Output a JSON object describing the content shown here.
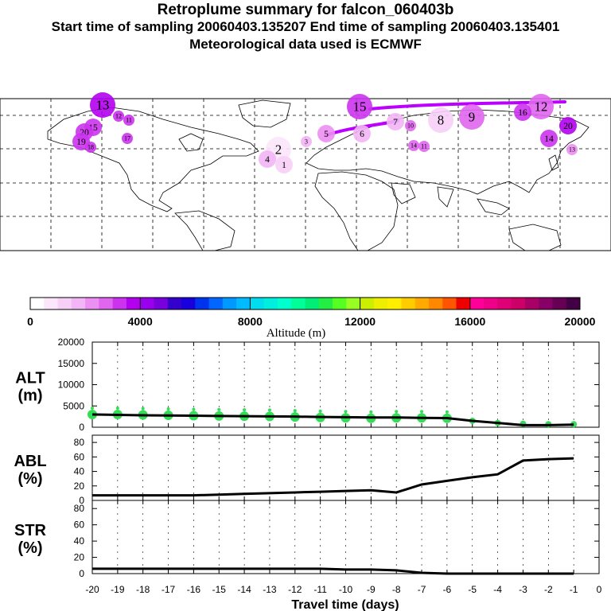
{
  "header": {
    "title": "Retroplume summary for falcon_060403b",
    "sampling": "Start time of sampling 20060403.135207     End time of sampling 20060403.135401",
    "met": "Meteorological data used is ECMWF"
  },
  "colors": {
    "altitude_scale": [
      "#ffffff",
      "#fbe6fb",
      "#f7cff7",
      "#f2b5f5",
      "#ec8ff2",
      "#e066ef",
      "#cc33ee",
      "#b300ee",
      "#9900ee",
      "#7700dd",
      "#3300cc",
      "#1800dd",
      "#0033ee",
      "#0066ff",
      "#0099ff",
      "#00bbff",
      "#00ddee",
      "#00eedd",
      "#00ffcc",
      "#00ff99",
      "#00ee77",
      "#22ee44",
      "#55ff22",
      "#99ff22",
      "#ccee00",
      "#eeee00",
      "#ffee00",
      "#ffcc00",
      "#ffaa00",
      "#ff8800",
      "#ff5500",
      "#ee0000",
      "#ff0099",
      "#ee0088",
      "#dd0077",
      "#cc0066",
      "#aa0066",
      "#880066",
      "#660055",
      "#440044"
    ],
    "path": "#bb00ff",
    "alt_points": "#33dd55",
    "line": "#000000",
    "coast": "#000000"
  },
  "map": {
    "plumes": [
      {
        "label": "13",
        "a": 3500,
        "size": "large"
      },
      {
        "label": "12",
        "a": 3200,
        "size": "small"
      },
      {
        "label": "11",
        "a": 3000,
        "size": "small"
      },
      {
        "label": "15",
        "a": 3300,
        "size": "medium"
      },
      {
        "label": "20",
        "a": 3000,
        "size": "medium"
      },
      {
        "label": "19",
        "a": 3200,
        "size": "medium"
      },
      {
        "label": "18",
        "a": 3400,
        "size": "small"
      },
      {
        "label": "17",
        "a": 3000,
        "size": "small"
      },
      {
        "label": "2",
        "a": 900,
        "size": "large"
      },
      {
        "label": "1",
        "a": 1000,
        "size": "medium"
      },
      {
        "label": "4",
        "a": 1500,
        "size": "medium"
      },
      {
        "label": "3",
        "a": 1700,
        "size": "small"
      },
      {
        "label": "5",
        "a": 2000,
        "size": "medium"
      },
      {
        "label": "6",
        "a": 1800,
        "size": "medium"
      },
      {
        "label": "7",
        "a": 1500,
        "size": "medium"
      },
      {
        "label": "8",
        "a": 1000,
        "size": "large"
      },
      {
        "label": "9",
        "a": 2600,
        "size": "large"
      },
      {
        "label": "10",
        "a": 2800,
        "size": "small"
      },
      {
        "label": "14",
        "a": 2600,
        "size": "small"
      },
      {
        "label": "15",
        "a": 3400,
        "size": "large"
      },
      {
        "label": "12",
        "a": 2700,
        "size": "large"
      },
      {
        "label": "16",
        "a": 3200,
        "size": "medium"
      },
      {
        "label": "14",
        "a": 3300,
        "size": "medium"
      },
      {
        "label": "20",
        "a": 3800,
        "size": "medium"
      },
      {
        "label": "13",
        "a": 2400,
        "size": "small"
      },
      {
        "label": "11",
        "a": 2600,
        "size": "small"
      }
    ]
  },
  "colorbar": {
    "ticks": [
      "0",
      "4000",
      "8000",
      "12000",
      "16000",
      "20000"
    ],
    "label": "Altitude  (m)"
  },
  "panels": {
    "alt": {
      "line1": "ALT",
      "line2": "(m)",
      "yticks": [
        "20000",
        "15000",
        "10000",
        "5000",
        "0"
      ]
    },
    "abl": {
      "line1": "ABL",
      "line2": "(%)",
      "yticks": [
        "80",
        "60",
        "40",
        "20",
        "0"
      ]
    },
    "str": {
      "line1": "STR",
      "line2": "(%)",
      "yticks": [
        "80",
        "60",
        "40",
        "20",
        "0"
      ]
    }
  },
  "chart_data": [
    {
      "type": "scatter",
      "title": "ALT (m)",
      "xlabel": "Travel time (days)",
      "ylabel": "ALT (m)",
      "xlim": [
        -20,
        0
      ],
      "ylim": [
        0,
        20000
      ],
      "x": [
        -20,
        -19,
        -18,
        -17,
        -16,
        -15,
        -14,
        -13,
        -12,
        -11,
        -10,
        -9,
        -8,
        -7,
        -6,
        -5,
        -4,
        -3,
        -2,
        -1
      ],
      "median": [
        3000,
        2900,
        2800,
        2750,
        2700,
        2650,
        2600,
        2550,
        2500,
        2400,
        2350,
        2300,
        2300,
        2200,
        2150,
        1500,
        1000,
        500,
        500,
        600
      ],
      "points": [
        3000,
        3000,
        2900,
        2800,
        2700,
        2650,
        2600,
        2550,
        2400,
        2300,
        2200,
        2100,
        2200,
        2200,
        2100,
        1500,
        1000,
        800,
        700,
        700
      ]
    },
    {
      "type": "line",
      "title": "ABL (%)",
      "xlim": [
        -20,
        0
      ],
      "ylim": [
        0,
        90
      ],
      "x": [
        -20,
        -19,
        -18,
        -17,
        -16,
        -15,
        -14,
        -13,
        -12,
        -11,
        -10,
        -9,
        -8,
        -7,
        -6,
        -5,
        -4,
        -3,
        -2,
        -1
      ],
      "values": [
        7,
        7,
        7,
        7,
        7,
        8,
        9,
        10,
        11,
        12,
        13,
        14,
        11,
        22,
        27,
        32,
        36,
        55,
        57,
        58
      ]
    },
    {
      "type": "line",
      "title": "STR (%)",
      "xlim": [
        -20,
        0
      ],
      "ylim": [
        0,
        90
      ],
      "x": [
        -20,
        -19,
        -18,
        -17,
        -16,
        -15,
        -14,
        -13,
        -12,
        -11,
        -10,
        -9,
        -8,
        -7,
        -6,
        -5,
        -4,
        -3,
        -2,
        -1
      ],
      "values": [
        6,
        6,
        6,
        6,
        6,
        6,
        6,
        6,
        6,
        6,
        5,
        5,
        4,
        1,
        0,
        0,
        0,
        0,
        0,
        0
      ]
    }
  ],
  "xaxis": {
    "ticks": [
      "-20",
      "-19",
      "-18",
      "-17",
      "-16",
      "-15",
      "-14",
      "-13",
      "-12",
      "-11",
      "-10",
      "-9",
      "-8",
      "-7",
      "-6",
      "-5",
      "-4",
      "-3",
      "-2",
      "-1",
      "0"
    ],
    "label": "Travel time (days)"
  }
}
